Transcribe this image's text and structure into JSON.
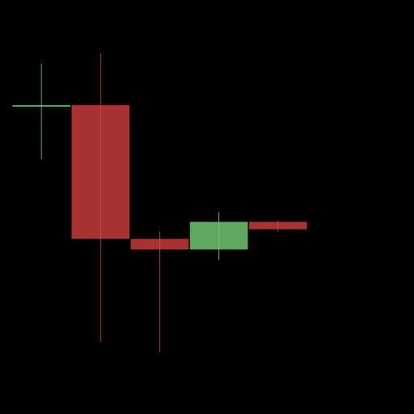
{
  "chart_data": {
    "type": "candlestick",
    "grid": false,
    "legend": "none",
    "colors": {
      "background": "#000000",
      "up": "#5fa85f",
      "down": "#a83232"
    },
    "candles": [
      {
        "index": 0,
        "open": 35.0,
        "high": 39.0,
        "low": 30.0,
        "close": 35.1
      },
      {
        "index": 1,
        "open": 35.1,
        "high": 40.0,
        "low": 12.8,
        "close": 22.5
      },
      {
        "index": 2,
        "open": 22.5,
        "high": 23.2,
        "low": 11.8,
        "close": 21.5
      },
      {
        "index": 3,
        "open": 21.5,
        "high": 25.0,
        "low": 20.5,
        "close": 24.1
      },
      {
        "index": 4,
        "open": 24.1,
        "high": 24.3,
        "low": 23.1,
        "close": 23.4
      }
    ],
    "xlim": [
      -0.7,
      6.3
    ],
    "ylim": [
      6.0,
      45.0
    ]
  }
}
